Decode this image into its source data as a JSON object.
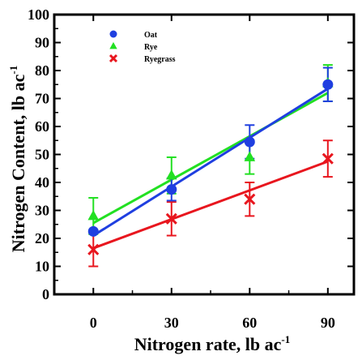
{
  "chart_data": {
    "type": "scatter",
    "xlabel": "Nitrogen rate, lb ac",
    "xlabel_sup": "-1",
    "ylabel": "Nitrogen Content, lb ac",
    "ylabel_sup": "-1",
    "x_ticks": [
      "0",
      "30",
      "60",
      "90"
    ],
    "y_ticks": [
      "0",
      "10",
      "20",
      "30",
      "40",
      "50",
      "60",
      "70",
      "80",
      "90",
      "100"
    ],
    "xlim": [
      -15,
      100
    ],
    "ylim": [
      0,
      100
    ],
    "legend_position": "top-left",
    "series": [
      {
        "name": "Oat",
        "color": "#1f3fe0",
        "marker": "circle",
        "x": [
          0,
          30,
          60,
          90
        ],
        "y": [
          22.5,
          37.5,
          54.5,
          75
        ],
        "err": [
          0,
          4,
          6,
          6
        ],
        "fit": [
          [
            0,
            21
          ],
          [
            90,
            73.5
          ]
        ]
      },
      {
        "name": "Rye",
        "color": "#22e022",
        "marker": "triangle",
        "x": [
          0,
          30,
          60,
          90
        ],
        "y": [
          28,
          42.5,
          49,
          75.5
        ],
        "err": [
          6.5,
          6.5,
          6,
          6.5
        ],
        "fit": [
          [
            0,
            25.5
          ],
          [
            90,
            72
          ]
        ]
      },
      {
        "name": "Ryegrass",
        "color": "#e8161e",
        "marker": "x",
        "x": [
          0,
          30,
          60,
          90
        ],
        "y": [
          16,
          27,
          34,
          48.5
        ],
        "err": [
          6,
          6,
          6,
          6.5
        ],
        "fit": [
          [
            0,
            16.5
          ],
          [
            90,
            47.5
          ]
        ]
      }
    ]
  }
}
